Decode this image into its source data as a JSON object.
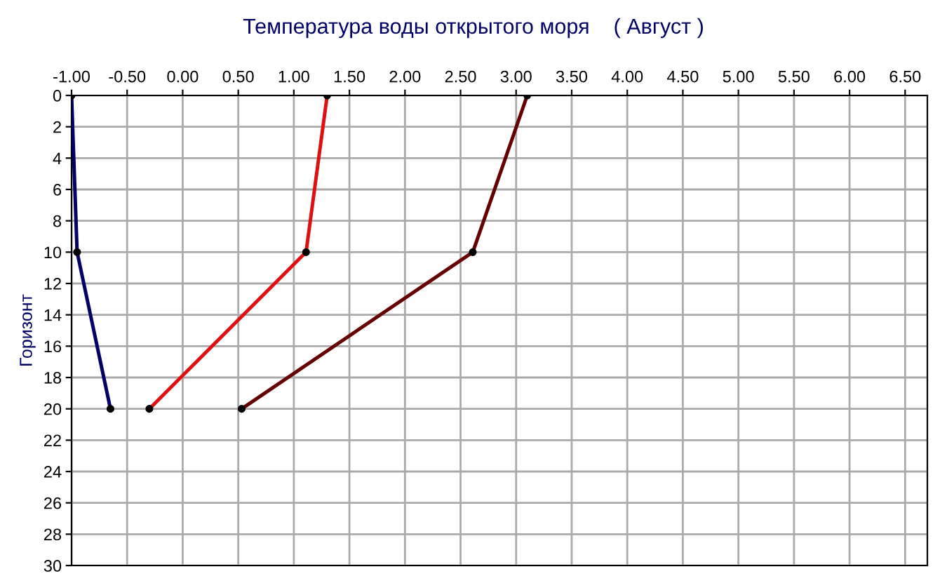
{
  "chart_data": {
    "type": "line",
    "title": "Температура воды открытого моря    ( Август )",
    "ylabel": "Горизонт",
    "series": [
      {
        "color": "#000066",
        "x": [
          -1.0,
          -0.95,
          -0.65
        ],
        "values": [
          0,
          10,
          20
        ]
      },
      {
        "color": "#dd1111",
        "x": [
          1.3,
          1.11,
          -0.3
        ],
        "values": [
          0,
          10,
          20
        ]
      },
      {
        "color": "#660000",
        "x": [
          3.1,
          2.61,
          0.53
        ],
        "values": [
          0,
          10,
          20
        ]
      }
    ],
    "xlim": [
      -1.0,
      6.7
    ],
    "ylim": [
      30,
      0
    ],
    "xticks": [
      {
        "value": -1,
        "label": "-1.00"
      },
      {
        "value": -0.5,
        "label": "-0.50"
      },
      {
        "value": 0,
        "label": "0.00"
      },
      {
        "value": 0.5,
        "label": "0.50"
      },
      {
        "value": 1,
        "label": "1.00"
      },
      {
        "value": 1.5,
        "label": "1.50"
      },
      {
        "value": 2,
        "label": "2.00"
      },
      {
        "value": 2.5,
        "label": "2.50"
      },
      {
        "value": 3,
        "label": "3.00"
      },
      {
        "value": 3.5,
        "label": "3.50"
      },
      {
        "value": 4,
        "label": "4.00"
      },
      {
        "value": 4.5,
        "label": "4.50"
      },
      {
        "value": 5,
        "label": "5.00"
      },
      {
        "value": 5.5,
        "label": "5.50"
      },
      {
        "value": 6,
        "label": "6.00"
      },
      {
        "value": 6.5,
        "label": "6.50"
      }
    ],
    "yticks": [
      0,
      2,
      4,
      6,
      8,
      10,
      12,
      14,
      16,
      18,
      20,
      22,
      24,
      26,
      28,
      30
    ],
    "grid": true,
    "marker": "circle",
    "line_style": "solid",
    "legend": false
  }
}
